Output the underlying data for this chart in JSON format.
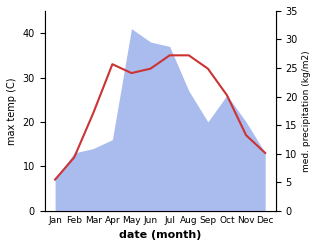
{
  "months": [
    "Jan",
    "Feb",
    "Mar",
    "Apr",
    "May",
    "Jun",
    "Jul",
    "Aug",
    "Sep",
    "Oct",
    "Nov",
    "Dec"
  ],
  "temperature": [
    7,
    12,
    22,
    33,
    31,
    32,
    35,
    35,
    32,
    26,
    17,
    13
  ],
  "precipitation": [
    7,
    13,
    14,
    16,
    41,
    38,
    37,
    27,
    20,
    26,
    20,
    13
  ],
  "temp_color": "#cc3333",
  "precip_color": "#aabbee",
  "xlabel": "date (month)",
  "ylabel_left": "max temp (C)",
  "ylabel_right": "med. precipitation (kg/m2)",
  "left_ylim": [
    0,
    45
  ],
  "left_yticks": [
    0,
    10,
    20,
    30,
    40
  ],
  "right_ylim": [
    0,
    35
  ],
  "right_yticks": [
    0,
    5,
    10,
    15,
    20,
    25,
    30,
    35
  ],
  "bg_color": "#ffffff"
}
